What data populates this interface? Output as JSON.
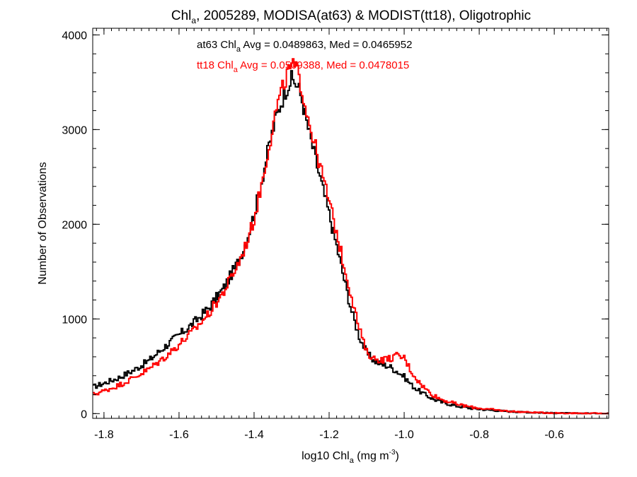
{
  "chart_data": {
    "type": "line",
    "title": {
      "prefix": "Chl",
      "sub": "a",
      "rest": ", 2005289, MODISA(at63) & MODIST(tt18), Oligotrophic"
    },
    "xlabel": {
      "prefix": "log10 Chl",
      "sub": "a",
      "mid": " (mg m",
      "sup": "-3",
      "end": ")"
    },
    "ylabel": "Number of Observations",
    "xlim": [
      -1.83,
      -0.455
    ],
    "ylim": [
      -50,
      4070
    ],
    "xticks": [
      -1.8,
      -1.6,
      -1.4,
      -1.2,
      -1.0,
      -0.8,
      -0.6
    ],
    "xtick_labels": [
      "-1.8",
      "-1.6",
      "-1.4",
      "-1.2",
      "-1.0",
      "-0.8",
      "-0.6"
    ],
    "yticks": [
      0,
      1000,
      2000,
      3000,
      4000
    ],
    "ytick_labels": [
      "0",
      "1000",
      "2000",
      "3000",
      "4000"
    ],
    "annotations": [
      {
        "series": "at63",
        "color": "#000000",
        "prefix": "at63 Chl",
        "sub": "a",
        "rest": " Avg = 0.0489863, Med = 0.0465952"
      },
      {
        "series": "tt18",
        "color": "#ff0000",
        "prefix": "tt18 Chl",
        "sub": "a",
        "rest": " Avg = 0.0509388, Med = 0.0478015"
      }
    ],
    "series": [
      {
        "name": "at63",
        "color": "#000000",
        "points": [
          [
            -1.83,
            280
          ],
          [
            -1.8,
            320
          ],
          [
            -1.76,
            380
          ],
          [
            -1.72,
            460
          ],
          [
            -1.68,
            560
          ],
          [
            -1.64,
            700
          ],
          [
            -1.6,
            830
          ],
          [
            -1.56,
            960
          ],
          [
            -1.52,
            1120
          ],
          [
            -1.48,
            1330
          ],
          [
            -1.44,
            1620
          ],
          [
            -1.42,
            1830
          ],
          [
            -1.4,
            2100
          ],
          [
            -1.38,
            2450
          ],
          [
            -1.36,
            2830
          ],
          [
            -1.34,
            3150
          ],
          [
            -1.32,
            3370
          ],
          [
            -1.31,
            3470
          ],
          [
            -1.3,
            3530
          ],
          [
            -1.29,
            3500
          ],
          [
            -1.28,
            3420
          ],
          [
            -1.27,
            3280
          ],
          [
            -1.26,
            3080
          ],
          [
            -1.24,
            2750
          ],
          [
            -1.22,
            2420
          ],
          [
            -1.2,
            2110
          ],
          [
            -1.18,
            1770
          ],
          [
            -1.16,
            1420
          ],
          [
            -1.14,
            1080
          ],
          [
            -1.12,
            820
          ],
          [
            -1.1,
            640
          ],
          [
            -1.08,
            560
          ],
          [
            -1.06,
            520
          ],
          [
            -1.04,
            500
          ],
          [
            -1.02,
            450
          ],
          [
            -1.0,
            390
          ],
          [
            -0.98,
            300
          ],
          [
            -0.96,
            240
          ],
          [
            -0.94,
            190
          ],
          [
            -0.92,
            150
          ],
          [
            -0.9,
            120
          ],
          [
            -0.86,
            80
          ],
          [
            -0.82,
            55
          ],
          [
            -0.78,
            40
          ],
          [
            -0.74,
            28
          ],
          [
            -0.7,
            18
          ],
          [
            -0.65,
            10
          ],
          [
            -0.6,
            6
          ],
          [
            -0.55,
            3
          ],
          [
            -0.5,
            2
          ],
          [
            -0.455,
            1
          ]
        ]
      },
      {
        "name": "tt18",
        "color": "#ff0000",
        "points": [
          [
            -1.83,
            200
          ],
          [
            -1.8,
            240
          ],
          [
            -1.76,
            300
          ],
          [
            -1.72,
            380
          ],
          [
            -1.68,
            470
          ],
          [
            -1.64,
            590
          ],
          [
            -1.6,
            730
          ],
          [
            -1.56,
            880
          ],
          [
            -1.52,
            1060
          ],
          [
            -1.48,
            1290
          ],
          [
            -1.44,
            1600
          ],
          [
            -1.42,
            1800
          ],
          [
            -1.4,
            2050
          ],
          [
            -1.38,
            2420
          ],
          [
            -1.36,
            2830
          ],
          [
            -1.34,
            3230
          ],
          [
            -1.32,
            3480
          ],
          [
            -1.31,
            3600
          ],
          [
            -1.3,
            3670
          ],
          [
            -1.29,
            3650
          ],
          [
            -1.28,
            3560
          ],
          [
            -1.27,
            3380
          ],
          [
            -1.26,
            3200
          ],
          [
            -1.24,
            2870
          ],
          [
            -1.22,
            2550
          ],
          [
            -1.2,
            2240
          ],
          [
            -1.18,
            1910
          ],
          [
            -1.16,
            1560
          ],
          [
            -1.14,
            1240
          ],
          [
            -1.12,
            900
          ],
          [
            -1.1,
            650
          ],
          [
            -1.08,
            580
          ],
          [
            -1.06,
            570
          ],
          [
            -1.04,
            580
          ],
          [
            -1.02,
            610
          ],
          [
            -1.0,
            590
          ],
          [
            -0.98,
            440
          ],
          [
            -0.96,
            330
          ],
          [
            -0.94,
            250
          ],
          [
            -0.92,
            190
          ],
          [
            -0.9,
            150
          ],
          [
            -0.86,
            100
          ],
          [
            -0.82,
            68
          ],
          [
            -0.78,
            48
          ],
          [
            -0.74,
            32
          ],
          [
            -0.7,
            20
          ],
          [
            -0.65,
            12
          ],
          [
            -0.6,
            7
          ],
          [
            -0.55,
            4
          ],
          [
            -0.5,
            2
          ],
          [
            -0.455,
            1
          ]
        ]
      }
    ]
  }
}
